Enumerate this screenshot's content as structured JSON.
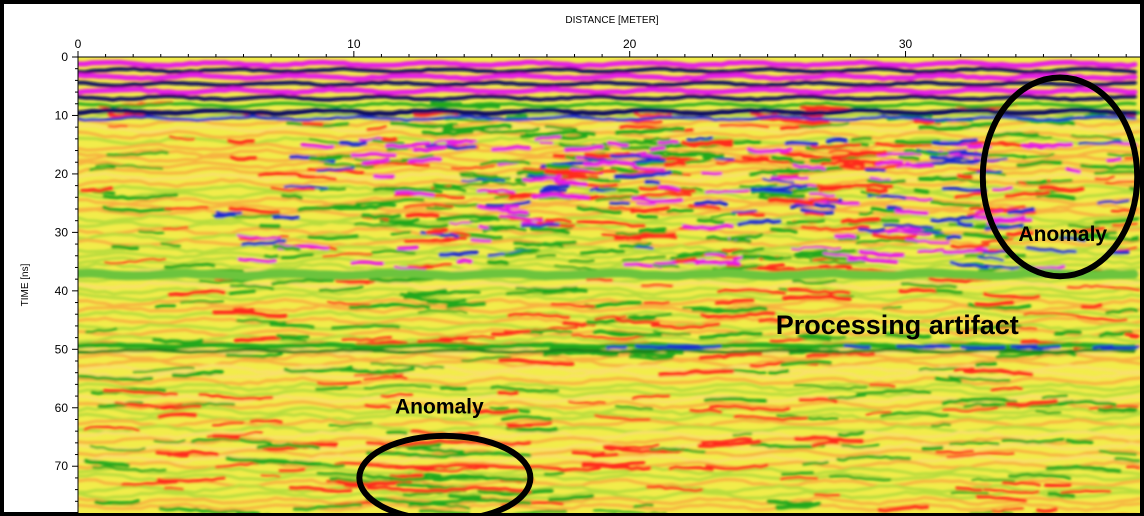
{
  "chart_data": {
    "type": "heatmap",
    "title": "",
    "xlabel": "DISTANCE [METER]",
    "ylabel": "TIME [ns]",
    "xlim": [
      0,
      38.5
    ],
    "ylim": [
      0,
      78
    ],
    "y_inverted": true,
    "x_ticks": [
      0,
      10,
      20,
      30
    ],
    "y_ticks": [
      0,
      10,
      20,
      30,
      40,
      50,
      60,
      70
    ],
    "grid": false,
    "colors": {
      "background": "#f2ec4a",
      "green": "#23a81e",
      "red": "#ff2a1a",
      "magenta": "#e61ee6",
      "blue": "#1a2ad0",
      "navy": "#0a0a60",
      "annotation": "#000000"
    },
    "annotations": [
      {
        "text": "Anomaly",
        "x": 35.7,
        "y": 31.5,
        "ellipse_center": [
          35.6,
          20.5
        ],
        "ellipse_radius": [
          2.8,
          17.0
        ]
      },
      {
        "text": "Processing artifact",
        "x": 29.7,
        "y": 47.4
      },
      {
        "text": "Anomaly",
        "x": 13.1,
        "y": 61.0,
        "ellipse_center": [
          13.3,
          72.0
        ],
        "ellipse_radius": [
          3.1,
          7.2
        ]
      }
    ]
  }
}
